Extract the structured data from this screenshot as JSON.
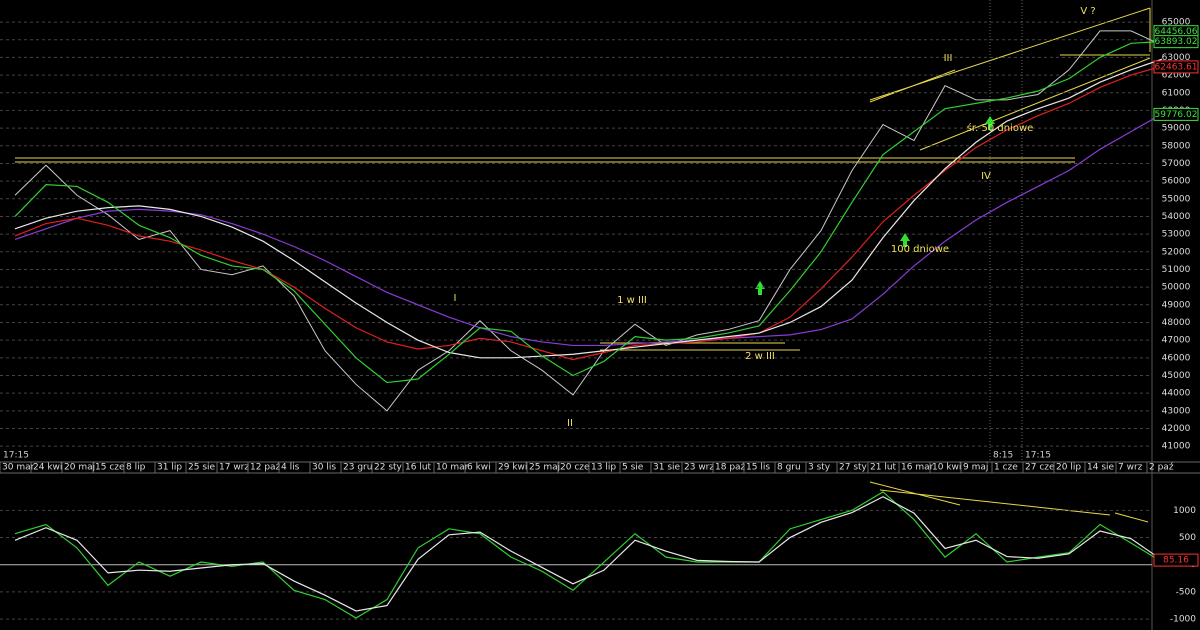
{
  "chart_data": [
    {
      "type": "line",
      "categories": [
        "30 mar",
        "24 kwi",
        "20 maj",
        "15 cze",
        "8 lip",
        "31 lip",
        "25 sie",
        "17 wrz",
        "12 paź",
        "4 lis",
        "30 lis",
        "23 gru",
        "22 sty",
        "16 lut",
        "10 mar",
        "6 kwi",
        "29 kwi",
        "25 maj",
        "20 cze",
        "13 lip",
        "5 sie",
        "31 sie",
        "23 wrz",
        "18 paź",
        "15 lis",
        "8 gru",
        "3 sty",
        "27 sty",
        "21 lut",
        "16 mar",
        "10 kwi",
        "9 maj",
        "1 cze",
        "27 cze",
        "20 lip",
        "14 sie",
        "7 wrz",
        "2 paź"
      ],
      "series": [
        {
          "color": "#c8c8c8",
          "values": [
            55200,
            56900,
            55200,
            54100,
            52700,
            53200,
            51000,
            50700,
            51200,
            49500,
            46400,
            44500,
            43000,
            45300,
            46400,
            48100,
            46400,
            45300,
            43900,
            46400,
            47900,
            46700,
            47300,
            47600,
            48100,
            51000,
            53200,
            56600,
            59200,
            58300,
            61400,
            60600,
            60600,
            60900,
            62300,
            64500,
            64500,
            63700
          ]
        },
        {
          "color": "#8a3cd8",
          "values": [
            52700,
            53300,
            53900,
            54300,
            54400,
            54300,
            54100,
            53600,
            53000,
            52300,
            51500,
            50600,
            49700,
            49000,
            48300,
            47700,
            47200,
            46900,
            46700,
            46700,
            46800,
            46900,
            47000,
            47100,
            47200,
            47300,
            47600,
            48200,
            49600,
            51200,
            52600,
            53800,
            54800,
            55700,
            56600,
            57800,
            58800,
            59800
          ]
        },
        {
          "color": "#e02020",
          "values": [
            52900,
            53600,
            53900,
            53500,
            52900,
            52600,
            52100,
            51500,
            51000,
            50000,
            48800,
            47700,
            46900,
            46500,
            46700,
            47100,
            46900,
            46400,
            45900,
            46300,
            46700,
            46800,
            46900,
            47100,
            47400,
            48300,
            49900,
            51700,
            53700,
            55200,
            56600,
            57900,
            58900,
            59700,
            60400,
            61300,
            62000,
            62500
          ]
        },
        {
          "color": "#e8e8e8",
          "values": [
            53300,
            53900,
            54300,
            54500,
            54600,
            54400,
            54000,
            53400,
            52600,
            51500,
            50300,
            49100,
            48000,
            47000,
            46300,
            46000,
            46000,
            46100,
            46200,
            46400,
            46600,
            46800,
            47000,
            47200,
            47400,
            48000,
            48900,
            50400,
            52800,
            54900,
            56700,
            58200,
            59400,
            60100,
            60700,
            61600,
            62300,
            62900
          ]
        },
        {
          "color": "#30d030",
          "values": [
            54000,
            55800,
            55700,
            54800,
            53500,
            52800,
            51800,
            51200,
            51000,
            49800,
            47900,
            46000,
            44600,
            44800,
            46200,
            47700,
            47500,
            46100,
            45000,
            45800,
            47200,
            47000,
            47100,
            47400,
            47800,
            49800,
            52000,
            54800,
            57500,
            58800,
            60100,
            60400,
            60700,
            61100,
            61800,
            63000,
            63800,
            63900
          ]
        }
      ],
      "ylim": [
        40500,
        66250
      ],
      "yticks": [
        41000,
        42000,
        43000,
        44000,
        45000,
        46000,
        47000,
        48000,
        49000,
        50000,
        51000,
        52000,
        53000,
        54000,
        55000,
        56000,
        57000,
        58000,
        59000,
        60000,
        61000,
        62000,
        63000,
        64000,
        65000
      ],
      "grid": true,
      "badges": [
        {
          "value": 64456.06,
          "color": "#40e040"
        },
        {
          "value": 63893.02,
          "color": "#40e040"
        },
        {
          "value": 62463.61,
          "color": "#ff3030"
        },
        {
          "value": 59776.02,
          "color": "#40e040"
        }
      ],
      "annotations": [
        "I",
        "II",
        "III",
        "IV",
        "V ?",
        "1 w III",
        "2 w III",
        "100 dniowe",
        "śr. 50 dniowe",
        "17:15",
        "8:15",
        "17:15"
      ]
    },
    {
      "type": "line",
      "series": [
        {
          "color": "#30d030",
          "values": [
            570,
            740,
            310,
            -380,
            50,
            -210,
            50,
            -30,
            50,
            -470,
            -640,
            -980,
            -640,
            310,
            660,
            570,
            140,
            -120,
            -470,
            50,
            570,
            140,
            50,
            50,
            50,
            660,
            830,
            1000,
            1340,
            830,
            140,
            570,
            50,
            140,
            220,
            740,
            400,
            50
          ]
        },
        {
          "color": "#e8e8e8",
          "values": [
            450,
            680,
            450,
            -150,
            -100,
            -120,
            -60,
            0,
            20,
            -300,
            -560,
            -850,
            -750,
            100,
            550,
            600,
            250,
            -50,
            -350,
            -100,
            450,
            250,
            80,
            60,
            50,
            500,
            780,
            960,
            1250,
            950,
            300,
            450,
            150,
            120,
            200,
            620,
            480,
            85.16
          ]
        }
      ],
      "ylim": [
        -1200,
        1650
      ],
      "yticks": [
        -1000,
        -500,
        0,
        500,
        1000
      ],
      "grid": true,
      "badges": [
        {
          "value": 85.16,
          "color": "#ff3030"
        }
      ]
    }
  ]
}
